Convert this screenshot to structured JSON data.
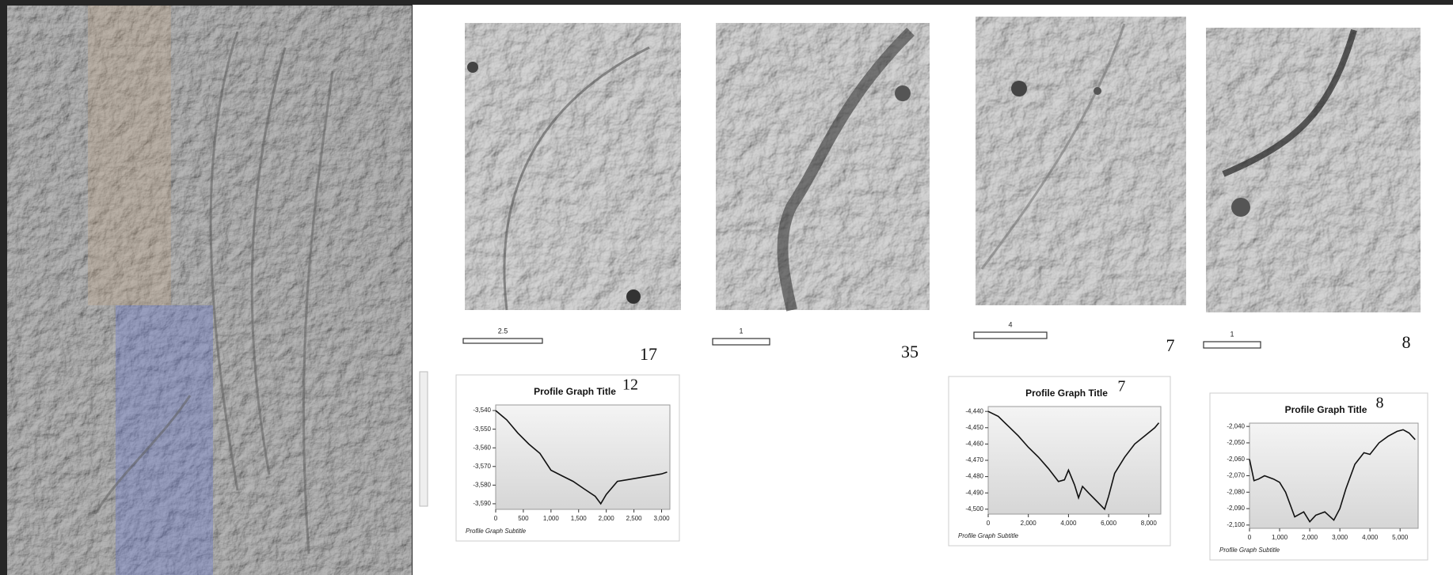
{
  "panels": [
    {
      "number": "17",
      "scale": "2.5"
    },
    {
      "number": "35",
      "scale": "1"
    },
    {
      "number": "7",
      "scale": "4"
    },
    {
      "number": "8",
      "scale": "1"
    }
  ],
  "profiles": [
    {
      "label": "12",
      "title": "Profile Graph Title",
      "subtitle": "Profile Graph Subtitle",
      "xlim": [
        0,
        3150
      ],
      "ylim": [
        -3593,
        -3537
      ],
      "xticks": [
        0,
        500,
        {
          "value": 1000,
          "label": "1,000"
        },
        {
          "value": 1500,
          "label": "1,500"
        },
        {
          "value": 2000,
          "label": "2,000"
        },
        {
          "value": 2500,
          "label": "2,500"
        },
        {
          "value": 3000,
          "label": "3,000"
        }
      ],
      "yticks": [
        {
          "value": -3540,
          "label": "-3,540"
        },
        {
          "value": -3550,
          "label": "-3,550"
        },
        {
          "value": -3560,
          "label": "-3,560"
        },
        {
          "value": -3570,
          "label": "-3,570"
        },
        {
          "value": -3580,
          "label": "-3,580"
        },
        {
          "value": -3590,
          "label": "-3,590"
        }
      ],
      "x": [
        0,
        200,
        400,
        600,
        800,
        1000,
        1200,
        1400,
        1600,
        1800,
        1900,
        2000,
        2200,
        2400,
        2600,
        2800,
        3000,
        3100
      ],
      "y": [
        -3540,
        -3545,
        -3552,
        -3558,
        -3563,
        -3572,
        -3575,
        -3578,
        -3582,
        -3586,
        -3590,
        -3585,
        -3578,
        -3577,
        -3576,
        -3575,
        -3574,
        -3573
      ]
    },
    {
      "label": "7",
      "title": "Profile Graph Title",
      "subtitle": "Profile Graph Subtitle",
      "xlim": [
        0,
        8600
      ],
      "ylim": [
        -4503,
        -4437
      ],
      "xticks": [
        0,
        {
          "value": 2000,
          "label": "2,000"
        },
        {
          "value": 4000,
          "label": "4,000"
        },
        {
          "value": 6000,
          "label": "6,000"
        },
        {
          "value": 8000,
          "label": "8,000"
        }
      ],
      "yticks": [
        {
          "value": -4440,
          "label": "-4,440"
        },
        {
          "value": -4450,
          "label": "-4,450"
        },
        {
          "value": -4460,
          "label": "-4,460"
        },
        {
          "value": -4470,
          "label": "-4,470"
        },
        {
          "value": -4480,
          "label": "-4,480"
        },
        {
          "value": -4490,
          "label": "-4,490"
        },
        {
          "value": -4500,
          "label": "-4,500"
        }
      ],
      "x": [
        0,
        500,
        1000,
        1500,
        2000,
        2500,
        3000,
        3500,
        3800,
        4000,
        4300,
        4500,
        4700,
        5000,
        5400,
        5800,
        6000,
        6300,
        6800,
        7300,
        7800,
        8300,
        8500
      ],
      "y": [
        -4440,
        -4443,
        -4449,
        -4455,
        -4462,
        -4468,
        -4475,
        -4483,
        -4482,
        -4476,
        -4485,
        -4493,
        -4486,
        -4490,
        -4495,
        -4500,
        -4492,
        -4478,
        -4468,
        -4460,
        -4455,
        -4450,
        -4447
      ]
    },
    {
      "label": "8",
      "title": "Profile Graph Title",
      "subtitle": "Profile Graph Subtitle",
      "xlim": [
        0,
        5600
      ],
      "ylim": [
        -2102,
        -2038
      ],
      "xticks": [
        0,
        {
          "value": 1000,
          "label": "1,000"
        },
        {
          "value": 2000,
          "label": "2,000"
        },
        {
          "value": 3000,
          "label": "3,000"
        },
        {
          "value": 4000,
          "label": "4,000"
        },
        {
          "value": 5000,
          "label": "5,000"
        }
      ],
      "yticks": [
        {
          "value": -2040,
          "label": "-2,040"
        },
        {
          "value": -2050,
          "label": "-2,050"
        },
        {
          "value": -2060,
          "label": "-2,060"
        },
        {
          "value": -2070,
          "label": "-2,070"
        },
        {
          "value": -2080,
          "label": "-2,080"
        },
        {
          "value": -2090,
          "label": "-2,090"
        },
        {
          "value": -2100,
          "label": "-2,100"
        }
      ],
      "x": [
        0,
        150,
        300,
        500,
        800,
        1000,
        1200,
        1500,
        1800,
        2000,
        2200,
        2500,
        2800,
        3000,
        3200,
        3500,
        3800,
        4000,
        4300,
        4600,
        4900,
        5100,
        5300,
        5500
      ],
      "y": [
        -2060,
        -2073,
        -2072,
        -2070,
        -2072,
        -2074,
        -2080,
        -2095,
        -2092,
        -2098,
        -2094,
        -2092,
        -2097,
        -2090,
        -2078,
        -2063,
        -2056,
        -2057,
        -2050,
        -2046,
        -2043,
        -2042,
        -2044,
        -2048
      ]
    }
  ]
}
